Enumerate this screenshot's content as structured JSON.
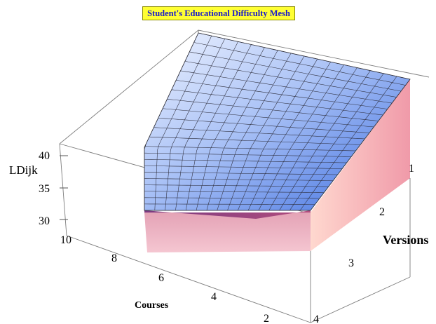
{
  "chart_data": {
    "type": "surface3d",
    "title": "Student's Educational Difficulty Mesh",
    "zlabel": "LDijk",
    "xlabel": "Courses",
    "ylabel": "Versions",
    "x_ticks": [
      "2",
      "4",
      "6",
      "8",
      "10"
    ],
    "y_ticks": [
      "1",
      "2",
      "3",
      "4"
    ],
    "z_ticks": [
      "30",
      "35",
      "40"
    ],
    "xlim": [
      1,
      10
    ],
    "ylim": [
      1,
      4
    ],
    "zlim": [
      30,
      41
    ],
    "grid": false,
    "surface_color": "#5e86e6",
    "side_color": "#f3b8c4",
    "surface_corners": [
      {
        "course": 10,
        "version": 1,
        "LDijk": 41
      },
      {
        "course": 1,
        "version": 1,
        "LDijk": 39.5
      },
      {
        "course": 1,
        "version": 4,
        "LDijk": 33
      },
      {
        "course": 10,
        "version": 4,
        "LDijk": 31.5
      }
    ]
  }
}
